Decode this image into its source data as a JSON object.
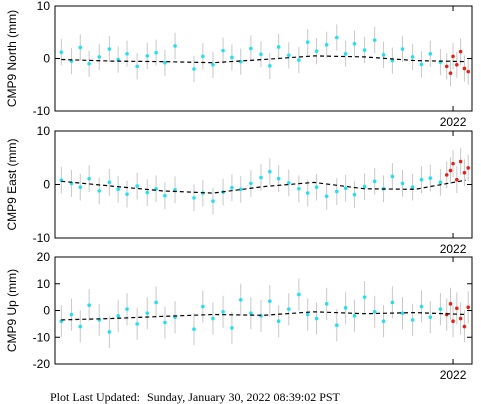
{
  "chart_data": [
    {
      "type": "scatter",
      "y_label": "CMP9 North (mm)",
      "xlim": [
        2018.85,
        2022.15
      ],
      "xticks": [
        2022
      ],
      "ylim": [
        -10,
        10
      ],
      "yticks": [
        -10,
        0,
        10
      ],
      "series": [
        {
          "color": "#22e0f0",
          "error": 2.5,
          "x": [
            2018.9,
            2018.98,
            2019.05,
            2019.12,
            2019.2,
            2019.28,
            2019.35,
            2019.42,
            2019.5,
            2019.58,
            2019.65,
            2019.72,
            2019.8,
            2019.95,
            2020.02,
            2020.1,
            2020.18,
            2020.25,
            2020.32,
            2020.4,
            2020.48,
            2020.55,
            2020.62,
            2020.7,
            2020.78,
            2020.85,
            2020.92,
            2021.0,
            2021.08,
            2021.15,
            2021.22,
            2021.3,
            2021.38,
            2021.45,
            2021.52,
            2021.6,
            2021.68,
            2021.75,
            2021.82,
            2021.9
          ],
          "values": [
            1.2,
            -0.5,
            2.1,
            -1.0,
            0.3,
            1.8,
            -0.2,
            0.9,
            -1.5,
            0.5,
            1.1,
            -0.8,
            2.4,
            -2.0,
            0.4,
            -1.2,
            1.5,
            0.2,
            -0.6,
            1.9,
            0.8,
            -1.4,
            2.2,
            0.6,
            -0.3,
            3.1,
            1.4,
            2.6,
            4.0,
            0.9,
            2.8,
            1.6,
            3.5,
            0.7,
            -0.4,
            1.8,
            0.3,
            -1.1,
            0.9,
            -0.7
          ]
        },
        {
          "color": "#e8201a",
          "error": 2.5,
          "x": [
            2021.95,
            2021.98,
            2022.0,
            2022.03,
            2022.06,
            2022.09,
            2022.12
          ],
          "values": [
            -1.5,
            -2.8,
            0.4,
            -1.2,
            1.3,
            -1.9,
            -2.5
          ]
        },
        {
          "color": "#000000",
          "style": "dashed",
          "x": [
            2018.9,
            2019.3,
            2019.7,
            2020.1,
            2020.5,
            2020.9,
            2021.3,
            2021.7,
            2022.1
          ],
          "values": [
            -0.2,
            -0.5,
            -0.6,
            -0.8,
            -0.2,
            0.5,
            0.3,
            -0.4,
            -0.6
          ]
        }
      ]
    },
    {
      "type": "scatter",
      "y_label": "CMP9 East (mm)",
      "xlim": [
        2018.85,
        2022.15
      ],
      "xticks": [
        2022
      ],
      "ylim": [
        -10,
        10
      ],
      "yticks": [
        -10,
        0,
        10
      ],
      "series": [
        {
          "color": "#22e0f0",
          "error": 2.5,
          "x": [
            2018.9,
            2018.98,
            2019.05,
            2019.12,
            2019.2,
            2019.28,
            2019.35,
            2019.42,
            2019.5,
            2019.58,
            2019.65,
            2019.72,
            2019.8,
            2019.95,
            2020.02,
            2020.1,
            2020.18,
            2020.25,
            2020.32,
            2020.4,
            2020.48,
            2020.55,
            2020.62,
            2020.7,
            2020.78,
            2020.85,
            2020.92,
            2021.0,
            2021.08,
            2021.15,
            2021.22,
            2021.3,
            2021.38,
            2021.45,
            2021.52,
            2021.6,
            2021.68,
            2021.75,
            2021.82,
            2021.9
          ],
          "values": [
            0.8,
            0.2,
            -0.5,
            1.1,
            -1.2,
            0.4,
            -0.9,
            -1.8,
            -0.3,
            -1.5,
            -0.8,
            -2.1,
            -1.0,
            -2.5,
            -1.6,
            -3.1,
            -1.4,
            -0.6,
            -0.9,
            0.2,
            1.3,
            2.4,
            1.1,
            0.3,
            -0.8,
            -1.6,
            -0.5,
            -2.2,
            -1.3,
            -0.7,
            -1.9,
            -0.4,
            0.6,
            -0.8,
            1.5,
            0.2,
            -0.5,
            0.9,
            1.2,
            0.4
          ]
        },
        {
          "color": "#e8201a",
          "error": 2.5,
          "x": [
            2021.95,
            2021.98,
            2022.0,
            2022.03,
            2022.06,
            2022.09,
            2022.12
          ],
          "values": [
            1.8,
            2.6,
            3.9,
            0.9,
            4.3,
            2.2,
            3.1
          ]
        },
        {
          "color": "#000000",
          "style": "dashed",
          "x": [
            2018.9,
            2019.3,
            2019.7,
            2020.1,
            2020.5,
            2020.9,
            2021.3,
            2021.7,
            2022.1
          ],
          "values": [
            0.6,
            -0.3,
            -1.2,
            -1.6,
            -0.4,
            0.4,
            -0.8,
            -0.9,
            0.8
          ]
        }
      ]
    },
    {
      "type": "scatter",
      "y_label": "CMP9 Up (mm)",
      "xlim": [
        2018.85,
        2022.15
      ],
      "xticks": [
        2022
      ],
      "ylim": [
        -20,
        20
      ],
      "yticks": [
        -20,
        -10,
        0,
        10,
        20
      ],
      "series": [
        {
          "color": "#22e0f0",
          "error": 6,
          "x": [
            2018.9,
            2018.98,
            2019.05,
            2019.12,
            2019.2,
            2019.28,
            2019.35,
            2019.42,
            2019.5,
            2019.58,
            2019.65,
            2019.72,
            2019.8,
            2019.95,
            2020.02,
            2020.1,
            2020.18,
            2020.25,
            2020.32,
            2020.4,
            2020.48,
            2020.55,
            2020.62,
            2020.7,
            2020.78,
            2020.85,
            2020.92,
            2021.0,
            2021.08,
            2021.15,
            2021.22,
            2021.3,
            2021.38,
            2021.45,
            2021.52,
            2021.6,
            2021.68,
            2021.75,
            2021.82,
            2021.9
          ],
          "values": [
            -4,
            -1.5,
            -6,
            2,
            -3.5,
            -8,
            -2,
            0.5,
            -5,
            -1,
            3,
            -4.5,
            -2.5,
            -7,
            1.5,
            -3,
            -0.5,
            -6.5,
            4,
            -1,
            -2,
            3.5,
            -4,
            0.5,
            6,
            -1.5,
            -3,
            2.5,
            -5.5,
            1,
            -2,
            5,
            -0.5,
            -4,
            3,
            -1,
            -3.5,
            1.5,
            -2.5,
            0.5
          ]
        },
        {
          "color": "#e8201a",
          "error": 6,
          "x": [
            2021.95,
            2021.98,
            2022.0,
            2022.03,
            2022.06,
            2022.09,
            2022.12
          ],
          "values": [
            -1.5,
            2.5,
            -4,
            0.8,
            -3,
            -6,
            1.2
          ]
        },
        {
          "color": "#000000",
          "style": "dashed",
          "x": [
            2018.9,
            2019.3,
            2019.7,
            2020.1,
            2020.5,
            2020.9,
            2021.3,
            2021.7,
            2022.1
          ],
          "values": [
            -3.5,
            -3.0,
            -2.2,
            -1.5,
            -1.8,
            -0.5,
            -1.2,
            -0.8,
            -1.5
          ]
        }
      ]
    }
  ],
  "footer": {
    "label": "Plot Last Updated:",
    "timestamp": "Sunday, January 30, 2022 08:39:02 PST"
  }
}
